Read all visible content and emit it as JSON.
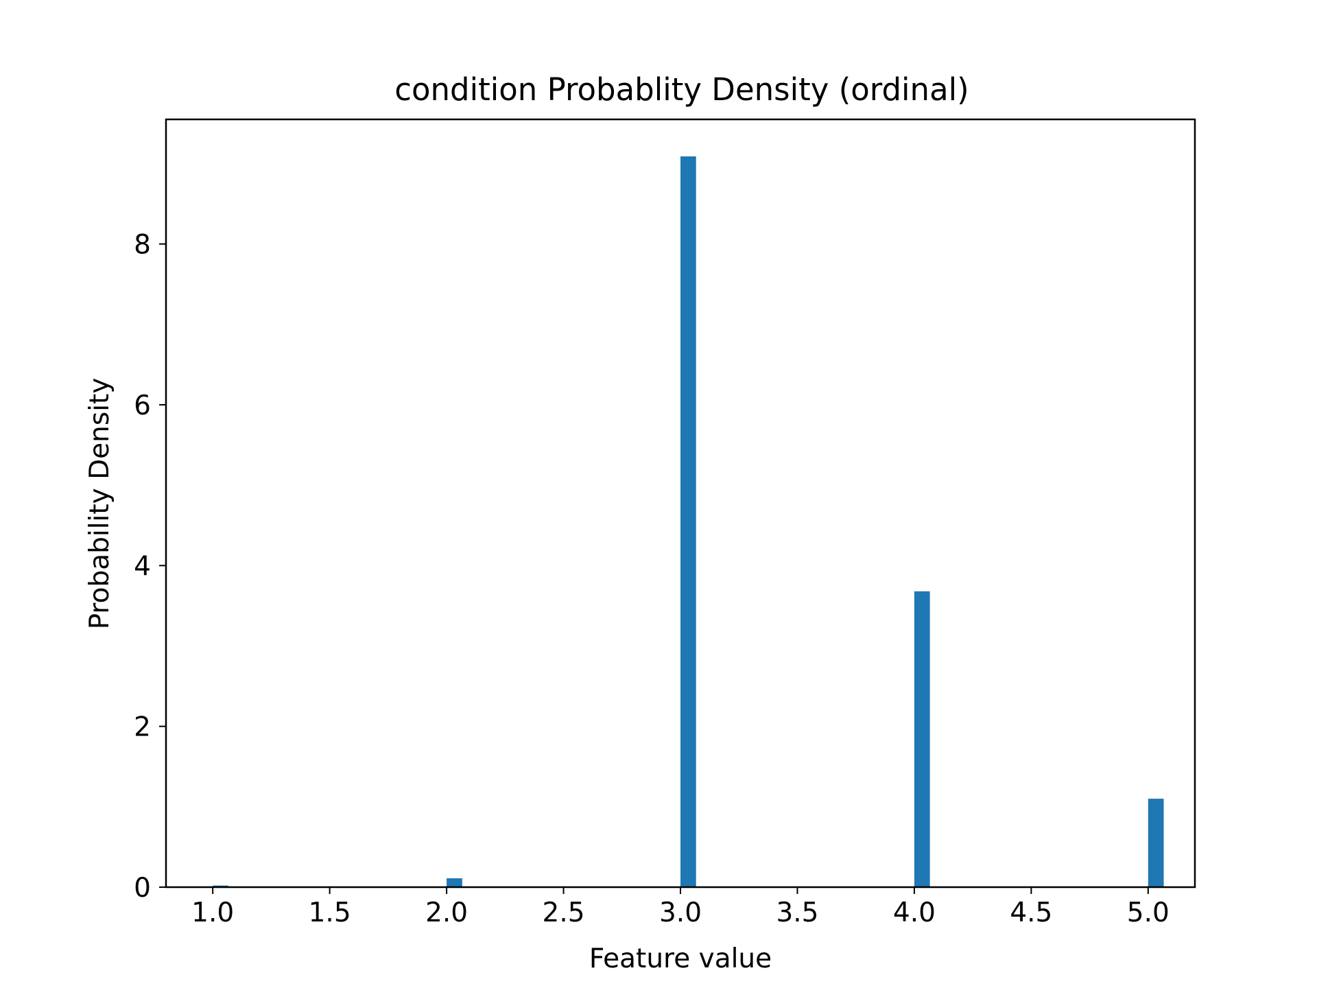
{
  "chart_data": {
    "type": "bar",
    "title": "condition Probablity Density (ordinal)",
    "xlabel": "Feature value",
    "ylabel": "Probability Density",
    "xlim": [
      0.8,
      5.2
    ],
    "ylim": [
      0,
      9.55
    ],
    "bar_color": "#1f77b4",
    "bar_width": 0.0667,
    "bars": [
      {
        "x": 1.0,
        "x_label": "1.0",
        "value": 0.02
      },
      {
        "x": 2.0,
        "x_label": "2.0",
        "value": 0.11
      },
      {
        "x": 3.0,
        "x_label": "3.0",
        "value": 9.09
      },
      {
        "x": 4.0,
        "x_label": "4.0",
        "value": 3.68
      },
      {
        "x": 5.0,
        "x_label": "5.0",
        "value": 1.1
      }
    ],
    "xticks": [
      {
        "value": 1.0,
        "label": "1.0"
      },
      {
        "value": 1.5,
        "label": "1.5"
      },
      {
        "value": 2.0,
        "label": "2.0"
      },
      {
        "value": 2.5,
        "label": "2.5"
      },
      {
        "value": 3.0,
        "label": "3.0"
      },
      {
        "value": 3.5,
        "label": "3.5"
      },
      {
        "value": 4.0,
        "label": "4.0"
      },
      {
        "value": 4.5,
        "label": "4.5"
      },
      {
        "value": 5.0,
        "label": "5.0"
      }
    ],
    "yticks": [
      {
        "value": 0,
        "label": "0"
      },
      {
        "value": 2,
        "label": "2"
      },
      {
        "value": 4,
        "label": "4"
      },
      {
        "value": 6,
        "label": "6"
      },
      {
        "value": 8,
        "label": "8"
      }
    ],
    "grid": false,
    "legend": "none"
  }
}
